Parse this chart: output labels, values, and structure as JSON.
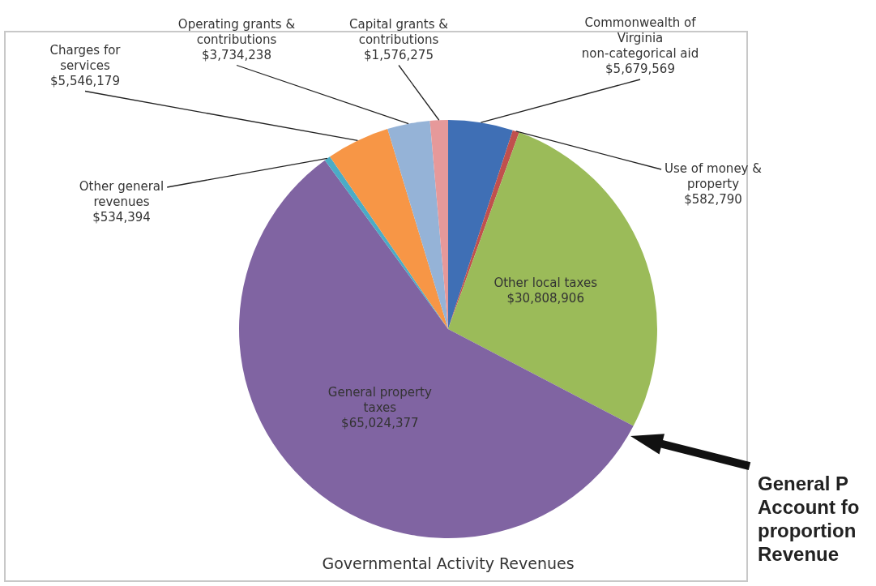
{
  "chart_data": {
    "type": "pie",
    "title": "Governmental Activity Revenues",
    "categories": [
      "Commonwealth of Virginia non-categorical aid",
      "Use of money & property",
      "Other local taxes",
      "General property taxes",
      "Other general revenues",
      "Charges for services",
      "Operating grants & contributions",
      "Capital grants & contributions"
    ],
    "values": [
      5679569,
      582790,
      30808906,
      65024377,
      534394,
      5546179,
      3734238,
      1576275
    ],
    "value_labels": [
      "$5,679,569",
      "$582,790",
      "$30,808,906",
      "$65,024,377",
      "$534,394",
      "$5,546,179",
      "$3,734,238",
      "$1,576,275"
    ],
    "colors": [
      "#3f6fb5",
      "#c0504d",
      "#9bbb59",
      "#8064a2",
      "#4bacc6",
      "#f79646",
      "#95b3d7",
      "#e6999a"
    ],
    "legend": false,
    "annotations": [
      "General P\nAccount fo\nproportion\nRevenue"
    ]
  }
}
